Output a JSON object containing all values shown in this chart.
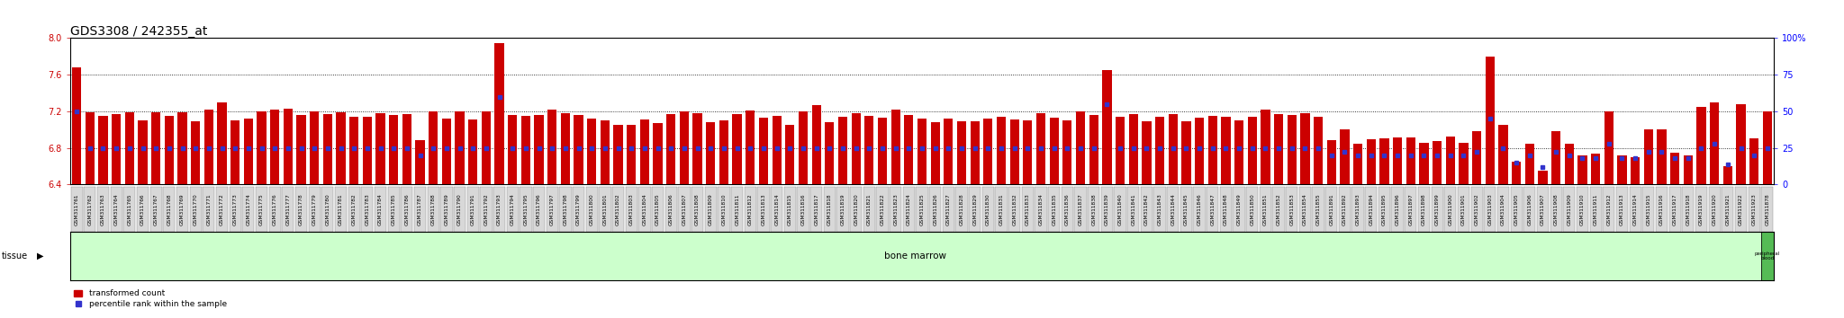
{
  "title": "GDS3308 / 242355_at",
  "y_min": 6.4,
  "y_max": 8.0,
  "y_ticks": [
    6.4,
    6.8,
    7.2,
    7.6,
    8.0
  ],
  "right_y_ticks": [
    0,
    25,
    50,
    75,
    100
  ],
  "bar_color": "#cc0000",
  "marker_color": "#3333cc",
  "tissue_label": "tissue",
  "bone_marrow_label": "bone marrow",
  "peripheral_blood_label": "peripheral\nblood",
  "legend_red": "transformed count",
  "legend_blue": "percentile rank within the sample",
  "tissue_band_color": "#ccffcc",
  "peripheral_blood_color": "#55bb55",
  "samples": [
    "GSM311761",
    "GSM311762",
    "GSM311763",
    "GSM311764",
    "GSM311765",
    "GSM311766",
    "GSM311767",
    "GSM311768",
    "GSM311769",
    "GSM311770",
    "GSM311771",
    "GSM311772",
    "GSM311773",
    "GSM311774",
    "GSM311775",
    "GSM311776",
    "GSM311777",
    "GSM311778",
    "GSM311779",
    "GSM311780",
    "GSM311781",
    "GSM311782",
    "GSM311783",
    "GSM311784",
    "GSM311785",
    "GSM311786",
    "GSM311787",
    "GSM311788",
    "GSM311789",
    "GSM311790",
    "GSM311791",
    "GSM311792",
    "GSM311793",
    "GSM311794",
    "GSM311795",
    "GSM311796",
    "GSM311797",
    "GSM311798",
    "GSM311799",
    "GSM311800",
    "GSM311801",
    "GSM311802",
    "GSM311803",
    "GSM311804",
    "GSM311805",
    "GSM311806",
    "GSM311807",
    "GSM311808",
    "GSM311809",
    "GSM311810",
    "GSM311811",
    "GSM311812",
    "GSM311813",
    "GSM311814",
    "GSM311815",
    "GSM311816",
    "GSM311817",
    "GSM311818",
    "GSM311819",
    "GSM311820",
    "GSM311821",
    "GSM311822",
    "GSM311823",
    "GSM311824",
    "GSM311825",
    "GSM311826",
    "GSM311827",
    "GSM311828",
    "GSM311829",
    "GSM311830",
    "GSM311831",
    "GSM311832",
    "GSM311833",
    "GSM311834",
    "GSM311835",
    "GSM311836",
    "GSM311837",
    "GSM311838",
    "GSM311839",
    "GSM311840",
    "GSM311841",
    "GSM311842",
    "GSM311843",
    "GSM311844",
    "GSM311845",
    "GSM311846",
    "GSM311847",
    "GSM311848",
    "GSM311849",
    "GSM311850",
    "GSM311851",
    "GSM311852",
    "GSM311853",
    "GSM311854",
    "GSM311855",
    "GSM311891",
    "GSM311892",
    "GSM311893",
    "GSM311894",
    "GSM311895",
    "GSM311896",
    "GSM311897",
    "GSM311898",
    "GSM311899",
    "GSM311900",
    "GSM311901",
    "GSM311902",
    "GSM311903",
    "GSM311904",
    "GSM311905",
    "GSM311906",
    "GSM311907",
    "GSM311908",
    "GSM311909",
    "GSM311910",
    "GSM311911",
    "GSM311912",
    "GSM311913",
    "GSM311914",
    "GSM311915",
    "GSM311916",
    "GSM311917",
    "GSM311918",
    "GSM311919",
    "GSM311920",
    "GSM311921",
    "GSM311922",
    "GSM311923",
    "GSM311878"
  ],
  "red_values": [
    7.68,
    7.19,
    7.15,
    7.17,
    7.19,
    7.1,
    7.19,
    7.15,
    7.19,
    7.09,
    7.22,
    7.3,
    7.1,
    7.12,
    7.2,
    7.22,
    7.23,
    7.16,
    7.2,
    7.17,
    7.19,
    7.14,
    7.14,
    7.18,
    7.16,
    7.17,
    6.88,
    7.2,
    7.12,
    7.2,
    7.11,
    7.2,
    7.95,
    7.16,
    7.15,
    7.16,
    7.22,
    7.18,
    7.16,
    7.12,
    7.1,
    7.05,
    7.05,
    7.11,
    7.07,
    7.17,
    7.2,
    7.18,
    7.08,
    7.1,
    7.17,
    7.21,
    7.13,
    7.15,
    7.05,
    7.2,
    7.27,
    7.08,
    7.14,
    7.18,
    7.15,
    7.13,
    7.22,
    7.16,
    7.12,
    7.08,
    7.12,
    7.09,
    7.09,
    7.12,
    7.14,
    7.11,
    7.1,
    7.18,
    7.13,
    7.1,
    7.2,
    7.16,
    7.65,
    7.14,
    7.17,
    7.09,
    7.14,
    7.17,
    7.09,
    7.13,
    7.15,
    7.14,
    7.1,
    7.14,
    7.22,
    7.17,
    7.16,
    7.18,
    7.14,
    6.88,
    7.0,
    6.85,
    6.89,
    6.9,
    6.91,
    6.91,
    6.86,
    6.87,
    6.92,
    6.86,
    6.98,
    7.8,
    7.05,
    6.65,
    6.85,
    6.55,
    6.98,
    6.85,
    6.72,
    6.74,
    7.2,
    6.72,
    6.7,
    7.0,
    7.0,
    6.75,
    6.72,
    7.25,
    7.3,
    6.6,
    7.28,
    6.9,
    7.2
  ],
  "blue_pct": [
    50,
    25,
    25,
    25,
    25,
    25,
    25,
    25,
    25,
    25,
    25,
    25,
    25,
    25,
    25,
    25,
    25,
    25,
    25,
    25,
    25,
    25,
    25,
    25,
    25,
    25,
    20,
    25,
    25,
    25,
    25,
    25,
    60,
    25,
    25,
    25,
    25,
    25,
    25,
    25,
    25,
    25,
    25,
    25,
    25,
    25,
    25,
    25,
    25,
    25,
    25,
    25,
    25,
    25,
    25,
    25,
    25,
    25,
    25,
    25,
    25,
    25,
    25,
    25,
    25,
    25,
    25,
    25,
    25,
    25,
    25,
    25,
    25,
    25,
    25,
    25,
    25,
    25,
    55,
    25,
    25,
    25,
    25,
    25,
    25,
    25,
    25,
    25,
    25,
    25,
    25,
    25,
    25,
    25,
    25,
    20,
    22,
    20,
    20,
    20,
    20,
    20,
    20,
    20,
    20,
    20,
    22,
    45,
    25,
    15,
    20,
    12,
    22,
    20,
    18,
    18,
    28,
    18,
    18,
    22,
    22,
    18,
    18,
    25,
    28,
    14,
    25,
    20,
    25
  ],
  "n_bone_marrow": 128,
  "n_peripheral_blood": 1,
  "title_fontsize": 10,
  "tick_fontsize": 7,
  "bar_width": 0.7
}
